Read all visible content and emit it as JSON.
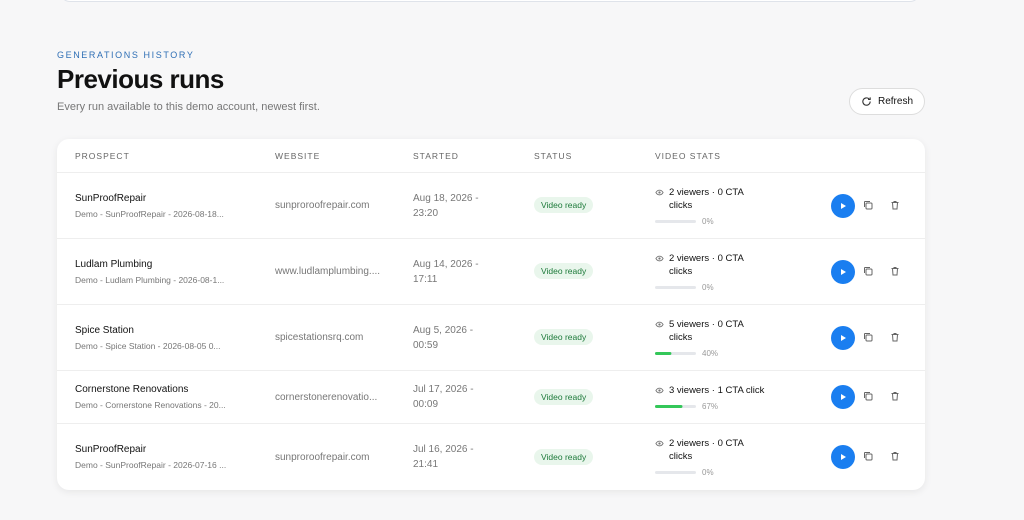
{
  "header": {
    "eyebrow": "GENERATIONS HISTORY",
    "title": "Previous runs",
    "subtitle": "Every run available to this demo account, newest first.",
    "refresh": "Refresh"
  },
  "table": {
    "columns": [
      "PROSPECT",
      "WEBSITE",
      "STARTED",
      "STATUS",
      "VIDEO STATS"
    ],
    "rows": [
      {
        "prospect": "SunProofRepair",
        "detail": "Demo - SunProofRepair - 2026-08-18...",
        "website": "sunproroofrepair.com",
        "started": "Aug 18, 2026 - 23:20",
        "status": "Video ready",
        "stats": "2 viewers · 0 CTA clicks",
        "progress": 0,
        "progress_label": "0%"
      },
      {
        "prospect": "Ludlam Plumbing",
        "detail": "Demo - Ludlam Plumbing - 2026-08-1...",
        "website": "www.ludlamplumbing....",
        "started": "Aug 14, 2026 - 17:11",
        "status": "Video ready",
        "stats": "2 viewers · 0 CTA clicks",
        "progress": 0,
        "progress_label": "0%"
      },
      {
        "prospect": "Spice Station",
        "detail": "Demo - Spice Station - 2026-08-05 0...",
        "website": "spicestationsrq.com",
        "started": "Aug 5, 2026 - 00:59",
        "status": "Video ready",
        "stats": "5 viewers · 0 CTA clicks",
        "progress": 40,
        "progress_label": "40%"
      },
      {
        "prospect": "Cornerstone Renovations",
        "detail": "Demo - Cornerstone Renovations - 20...",
        "website": "cornerstonerenovatio...",
        "started": "Jul 17, 2026 - 00:09",
        "status": "Video ready",
        "stats": "3 viewers · 1 CTA click",
        "progress": 67,
        "progress_label": "67%"
      },
      {
        "prospect": "SunProofRepair",
        "detail": "Demo - SunProofRepair - 2026-07-16 ...",
        "website": "sunproroofrepair.com",
        "started": "Jul 16, 2026 - 21:41",
        "status": "Video ready",
        "stats": "2 viewers · 0 CTA clicks",
        "progress": 0,
        "progress_label": "0%"
      }
    ]
  }
}
